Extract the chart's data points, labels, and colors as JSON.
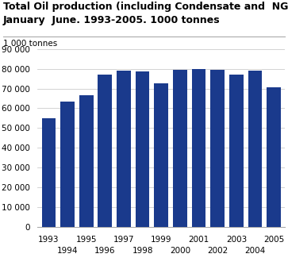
{
  "title_line1": "Total Oil production (including Condensate and  NGL).",
  "title_line2": "January  June. 1993-2005. 1000 tonnes",
  "ylabel": "1 000 tonnes",
  "years": [
    1993,
    1994,
    1995,
    1996,
    1997,
    1998,
    1999,
    2000,
    2001,
    2002,
    2003,
    2004,
    2005
  ],
  "values": [
    55000,
    63500,
    66500,
    77000,
    79000,
    78500,
    72500,
    79500,
    80000,
    79500,
    77000,
    79000,
    70500
  ],
  "bar_color": "#1a3a8c",
  "ylim": [
    0,
    90000
  ],
  "yticks": [
    0,
    10000,
    20000,
    30000,
    40000,
    50000,
    60000,
    70000,
    80000,
    90000
  ],
  "background_color": "#ffffff",
  "grid_color": "#cccccc",
  "title_fontsize": 9.0,
  "axis_fontsize": 7.5,
  "ylabel_fontsize": 7.5
}
